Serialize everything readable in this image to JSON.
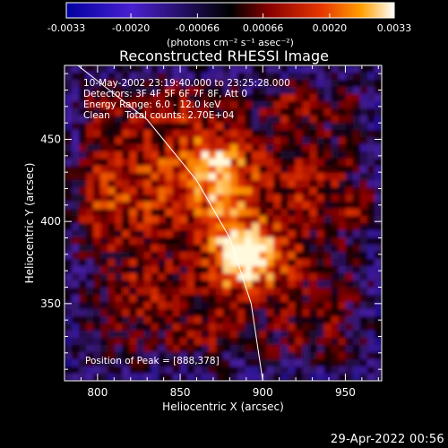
{
  "chart_data": {
    "type": "heatmap",
    "title": "Reconstructed RHESSI Image",
    "xlabel": "Heliocentric X (arcsec)",
    "ylabel": "Heliocentric Y (arcsec)",
    "xlim": [
      780,
      972
    ],
    "ylim": [
      303,
      495
    ],
    "x_ticks": [
      800,
      850,
      900,
      950
    ],
    "y_ticks": [
      350,
      400,
      450
    ],
    "colorbar": {
      "min": -0.0033,
      "max": 0.0033,
      "tick_values": [
        -0.0033,
        -0.002,
        -0.00066,
        0.00066,
        0.002,
        0.0033
      ],
      "tick_labels": [
        "-0.0033",
        "-0.0020",
        "-0.00066",
        "0.00066",
        "0.0020",
        "0.0033"
      ],
      "units_label": "(photons cm⁻² s⁻¹ asec⁻²)",
      "colors": [
        "#000080",
        "#3a18c8",
        "#000000",
        "#8a0000",
        "#e03000",
        "#ff9a00",
        "#ffffff"
      ]
    },
    "annotations": {
      "time_range": "10-May-2002 23:19:40.000 to 23:25:28.000",
      "detectors": "Detectors: 3F 4F 5F 6F 7F 8F, Att 0",
      "energy": "Energy Range: 6.0 - 12.0 keV",
      "clean": "Clean     Total counts: 2.70E+04",
      "peak": "Position of Peak = [888,378]"
    },
    "peak": [
      888,
      378
    ],
    "limb_arc_points": [
      [
        788,
        495
      ],
      [
        830,
        462
      ],
      [
        860,
        425
      ],
      [
        880,
        390
      ],
      [
        893,
        350
      ],
      [
        900,
        303
      ]
    ]
  },
  "footer": {
    "timestamp": "29-Apr-2022 00:56"
  }
}
